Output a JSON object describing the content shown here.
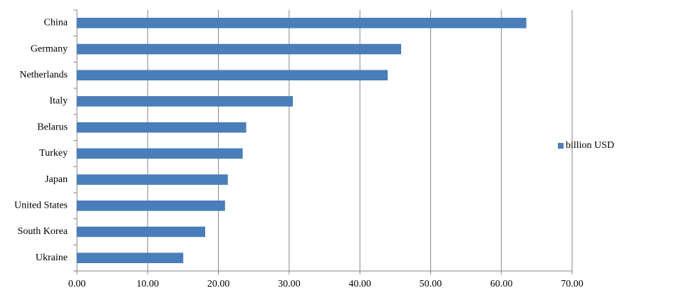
{
  "chart_data": {
    "type": "bar",
    "orientation": "horizontal",
    "categories": [
      "China",
      "Germany",
      "Netherlands",
      "Italy",
      "Belarus",
      "Turkey",
      "Japan",
      "United States",
      "South Korea",
      "Ukraine"
    ],
    "series": [
      {
        "name": "billion USD",
        "color": "#4a7ebb",
        "values": [
          63.5,
          45.8,
          43.9,
          30.5,
          23.9,
          23.4,
          21.3,
          20.9,
          18.1,
          15.0
        ]
      }
    ],
    "xlim": [
      0,
      70
    ],
    "xticks": [
      {
        "value": 0,
        "label": "0.00"
      },
      {
        "value": 10,
        "label": "10.00"
      },
      {
        "value": 20,
        "label": "20.00"
      },
      {
        "value": 30,
        "label": "30.00"
      },
      {
        "value": 40,
        "label": "40.00"
      },
      {
        "value": 50,
        "label": "50.00"
      },
      {
        "value": 60,
        "label": "60.00"
      },
      {
        "value": 70,
        "label": "70.00"
      }
    ],
    "grid": true,
    "legend": "right"
  }
}
